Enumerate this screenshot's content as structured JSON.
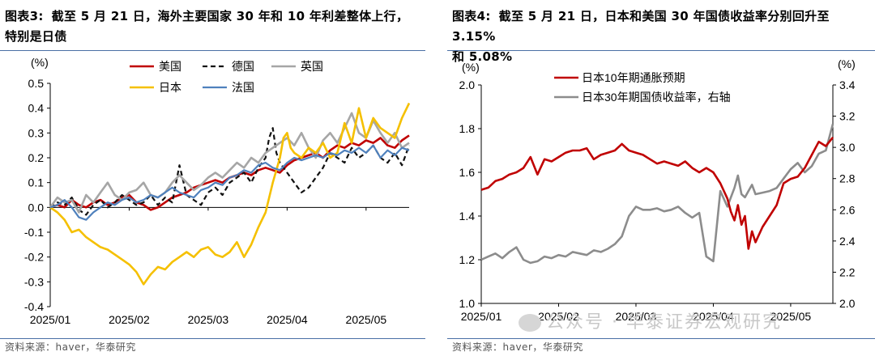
{
  "left": {
    "fig_label": "图表3:",
    "title_line1": "截至 5 月 21 日，海外主要国家 30 年和 10 年利差整体上行，",
    "title_line2": "特别是日债",
    "source": "资料来源：haver，华泰研究",
    "chart_data": {
      "type": "line",
      "unit_label": "(%)",
      "ylim": [
        -0.4,
        0.5
      ],
      "yticks": [
        "0.5",
        "0.4",
        "0.3",
        "0.2",
        "0.1",
        "0.0",
        "-0.1",
        "-0.2",
        "-0.3",
        "-0.4"
      ],
      "xticks": [
        "2025/01",
        "2025/02",
        "2025/03",
        "2025/04",
        "2025/05"
      ],
      "legend_position": "top",
      "series": [
        {
          "name": "美国",
          "color": "#c00000",
          "dash": "",
          "width": 2.6,
          "x": [
            0,
            2,
            4,
            6,
            8,
            10,
            12,
            14,
            16,
            18,
            20,
            22,
            24,
            26,
            28,
            30,
            32,
            34,
            36,
            38,
            40,
            42,
            44,
            46,
            48,
            50,
            52,
            54,
            56,
            58,
            60,
            62,
            64,
            66,
            68,
            70,
            72,
            74,
            76,
            78,
            80,
            82,
            84,
            86,
            88,
            90,
            92,
            94,
            96,
            98,
            100
          ],
          "y": [
            0.0,
            0.01,
            0.0,
            0.03,
            0.01,
            0.0,
            0.02,
            0.03,
            0.01,
            0.02,
            0.04,
            0.05,
            0.02,
            0.01,
            -0.01,
            0.0,
            0.02,
            0.04,
            0.05,
            0.06,
            0.08,
            0.09,
            0.1,
            0.11,
            0.1,
            0.12,
            0.13,
            0.14,
            0.13,
            0.15,
            0.16,
            0.15,
            0.14,
            0.17,
            0.19,
            0.2,
            0.21,
            0.22,
            0.2,
            0.23,
            0.25,
            0.24,
            0.26,
            0.25,
            0.27,
            0.26,
            0.28,
            0.25,
            0.24,
            0.27,
            0.29
          ]
        },
        {
          "name": "德国",
          "color": "#111111",
          "dash": "6,4",
          "width": 2.2,
          "x": [
            0,
            2,
            4,
            6,
            8,
            10,
            12,
            14,
            16,
            18,
            20,
            22,
            24,
            26,
            28,
            30,
            32,
            34,
            36,
            38,
            40,
            42,
            44,
            46,
            48,
            50,
            52,
            54,
            56,
            58,
            60,
            61,
            62,
            63,
            64,
            66,
            68,
            70,
            72,
            74,
            76,
            78,
            80,
            82,
            84,
            86,
            88,
            90,
            92,
            94,
            96,
            98,
            100
          ],
          "y": [
            0.0,
            0.02,
            0.01,
            0.04,
            -0.01,
            -0.03,
            0.01,
            0.03,
            0.0,
            0.02,
            0.05,
            0.03,
            0.01,
            0.02,
            0.05,
            0.01,
            0.04,
            0.02,
            0.17,
            0.05,
            0.03,
            0.01,
            0.06,
            0.08,
            0.05,
            0.1,
            0.12,
            0.14,
            0.1,
            0.16,
            0.2,
            0.28,
            0.32,
            0.22,
            0.18,
            0.14,
            0.1,
            0.06,
            0.08,
            0.12,
            0.16,
            0.22,
            0.2,
            0.18,
            0.24,
            0.2,
            0.22,
            0.25,
            0.2,
            0.18,
            0.22,
            0.17,
            0.25
          ]
        },
        {
          "name": "英国",
          "color": "#a6a6a6",
          "dash": "",
          "width": 2.6,
          "x": [
            0,
            2,
            4,
            6,
            8,
            10,
            12,
            14,
            16,
            18,
            20,
            22,
            24,
            26,
            28,
            30,
            32,
            34,
            36,
            38,
            40,
            42,
            44,
            46,
            48,
            50,
            52,
            54,
            56,
            58,
            60,
            62,
            64,
            66,
            68,
            70,
            72,
            74,
            76,
            78,
            80,
            82,
            84,
            86,
            88,
            90,
            92,
            94,
            96,
            98,
            100
          ],
          "y": [
            0.0,
            0.04,
            0.02,
            0.03,
            -0.02,
            0.05,
            0.02,
            0.06,
            0.1,
            0.05,
            0.03,
            0.06,
            0.07,
            0.1,
            0.05,
            0.04,
            0.06,
            0.1,
            0.13,
            0.1,
            0.07,
            0.09,
            0.12,
            0.14,
            0.12,
            0.15,
            0.18,
            0.16,
            0.2,
            0.18,
            0.22,
            0.24,
            0.26,
            0.28,
            0.25,
            0.3,
            0.24,
            0.2,
            0.27,
            0.3,
            0.26,
            0.32,
            0.38,
            0.3,
            0.28,
            0.35,
            0.3,
            0.26,
            0.3,
            0.24,
            0.26
          ]
        },
        {
          "name": "日本",
          "color": "#f5c000",
          "dash": "",
          "width": 2.6,
          "x": [
            0,
            2,
            4,
            6,
            8,
            10,
            12,
            14,
            16,
            18,
            20,
            22,
            24,
            26,
            28,
            30,
            32,
            34,
            36,
            38,
            40,
            42,
            44,
            46,
            48,
            50,
            52,
            54,
            56,
            58,
            60,
            62,
            64,
            65,
            66,
            67,
            68,
            70,
            72,
            74,
            76,
            78,
            80,
            82,
            84,
            86,
            88,
            90,
            92,
            94,
            96,
            98,
            100
          ],
          "y": [
            0.0,
            -0.02,
            -0.05,
            -0.1,
            -0.09,
            -0.12,
            -0.14,
            -0.16,
            -0.17,
            -0.19,
            -0.21,
            -0.23,
            -0.26,
            -0.31,
            -0.27,
            -0.24,
            -0.25,
            -0.22,
            -0.2,
            -0.18,
            -0.2,
            -0.17,
            -0.16,
            -0.19,
            -0.2,
            -0.18,
            -0.14,
            -0.2,
            -0.15,
            -0.08,
            -0.02,
            0.1,
            0.2,
            0.28,
            0.3,
            0.24,
            0.22,
            0.2,
            0.24,
            0.22,
            0.26,
            0.2,
            0.22,
            0.34,
            0.26,
            0.4,
            0.28,
            0.36,
            0.32,
            0.3,
            0.28,
            0.36,
            0.42
          ]
        },
        {
          "name": "法国",
          "color": "#4f81bd",
          "dash": "",
          "width": 2.2,
          "x": [
            0,
            2,
            4,
            6,
            8,
            10,
            12,
            14,
            16,
            18,
            20,
            22,
            24,
            26,
            28,
            30,
            32,
            34,
            36,
            38,
            40,
            42,
            44,
            46,
            48,
            50,
            52,
            54,
            56,
            58,
            60,
            62,
            64,
            66,
            68,
            70,
            72,
            74,
            76,
            78,
            80,
            82,
            84,
            86,
            88,
            90,
            92,
            94,
            96,
            98,
            100
          ],
          "y": [
            0.0,
            0.01,
            0.03,
            0.0,
            -0.04,
            -0.05,
            -0.02,
            0.0,
            0.02,
            0.01,
            0.03,
            0.04,
            0.02,
            0.03,
            0.05,
            0.04,
            0.06,
            0.08,
            0.06,
            0.05,
            0.04,
            0.07,
            0.08,
            0.1,
            0.09,
            0.12,
            0.13,
            0.15,
            0.14,
            0.17,
            0.18,
            0.16,
            0.15,
            0.18,
            0.2,
            0.19,
            0.2,
            0.21,
            0.2,
            0.22,
            0.21,
            0.23,
            0.22,
            0.24,
            0.22,
            0.25,
            0.2,
            0.23,
            0.21,
            0.24,
            0.23
          ]
        }
      ]
    }
  },
  "right": {
    "fig_label": "图表4:",
    "title_line1": "截至 5 月 21 日，日本和美国 30 年国债收益率分别回升至 3.15%",
    "title_line2": "和 5.08%",
    "source": "资料来源：haver，华泰研究",
    "chart_data": {
      "type": "line",
      "unit_label_left": "(%)",
      "unit_label_right": "(%)",
      "ylim_left": [
        1.0,
        2.0
      ],
      "ylim_right": [
        2.0,
        3.4
      ],
      "yticks_left": [
        "2.0",
        "1.8",
        "1.6",
        "1.4",
        "1.2",
        "1.0"
      ],
      "yticks_right": [
        "3.4",
        "3.2",
        "3.0",
        "2.8",
        "2.6",
        "2.4",
        "2.2",
        "2.0"
      ],
      "xticks": [
        "2025/01",
        "2025/02",
        "2025/03",
        "2025/04",
        "2025/05"
      ],
      "legend_position": "top-left",
      "series": [
        {
          "name": "日本10年期通胀预期",
          "axis": "left",
          "color": "#c00000",
          "width": 2.6,
          "x": [
            0,
            2,
            4,
            6,
            8,
            10,
            12,
            14,
            16,
            18,
            20,
            22,
            24,
            26,
            28,
            30,
            32,
            34,
            36,
            38,
            40,
            42,
            44,
            46,
            48,
            50,
            52,
            54,
            56,
            58,
            60,
            62,
            64,
            66,
            68,
            70,
            71,
            72,
            73,
            74,
            75,
            76,
            77,
            78,
            80,
            82,
            84,
            86,
            88,
            90,
            92,
            94,
            96,
            98,
            100
          ],
          "y": [
            1.52,
            1.53,
            1.56,
            1.57,
            1.59,
            1.6,
            1.62,
            1.67,
            1.59,
            1.66,
            1.65,
            1.67,
            1.69,
            1.7,
            1.7,
            1.71,
            1.66,
            1.68,
            1.69,
            1.7,
            1.73,
            1.7,
            1.69,
            1.68,
            1.66,
            1.64,
            1.65,
            1.64,
            1.63,
            1.65,
            1.62,
            1.6,
            1.62,
            1.6,
            1.55,
            1.48,
            1.42,
            1.38,
            1.45,
            1.36,
            1.4,
            1.25,
            1.33,
            1.28,
            1.35,
            1.4,
            1.45,
            1.55,
            1.57,
            1.58,
            1.62,
            1.68,
            1.74,
            1.72,
            1.76
          ]
        },
        {
          "name": "日本30年期国债收益率，右轴",
          "axis": "right",
          "color": "#8c8c8c",
          "width": 2.6,
          "x": [
            0,
            2,
            4,
            6,
            8,
            10,
            12,
            14,
            16,
            18,
            20,
            22,
            24,
            26,
            28,
            30,
            32,
            34,
            36,
            38,
            40,
            42,
            44,
            46,
            48,
            50,
            52,
            54,
            56,
            58,
            60,
            62,
            64,
            66,
            68,
            70,
            71,
            72,
            73,
            74,
            75,
            76,
            77,
            78,
            80,
            82,
            84,
            86,
            88,
            90,
            92,
            94,
            96,
            98,
            100
          ],
          "y": [
            2.28,
            2.3,
            2.32,
            2.29,
            2.33,
            2.36,
            2.28,
            2.26,
            2.27,
            2.3,
            2.29,
            2.31,
            2.3,
            2.33,
            2.32,
            2.31,
            2.34,
            2.33,
            2.35,
            2.38,
            2.43,
            2.56,
            2.62,
            2.6,
            2.6,
            2.61,
            2.59,
            2.6,
            2.62,
            2.58,
            2.55,
            2.58,
            2.3,
            2.27,
            2.72,
            2.62,
            2.68,
            2.74,
            2.82,
            2.7,
            2.68,
            2.72,
            2.76,
            2.7,
            2.71,
            2.72,
            2.74,
            2.8,
            2.86,
            2.9,
            2.84,
            2.88,
            2.96,
            2.98,
            3.15
          ]
        }
      ]
    }
  },
  "watermark": {
    "text": "公众号 · 华泰证券宏观研究",
    "icon": "wechat-icon"
  }
}
